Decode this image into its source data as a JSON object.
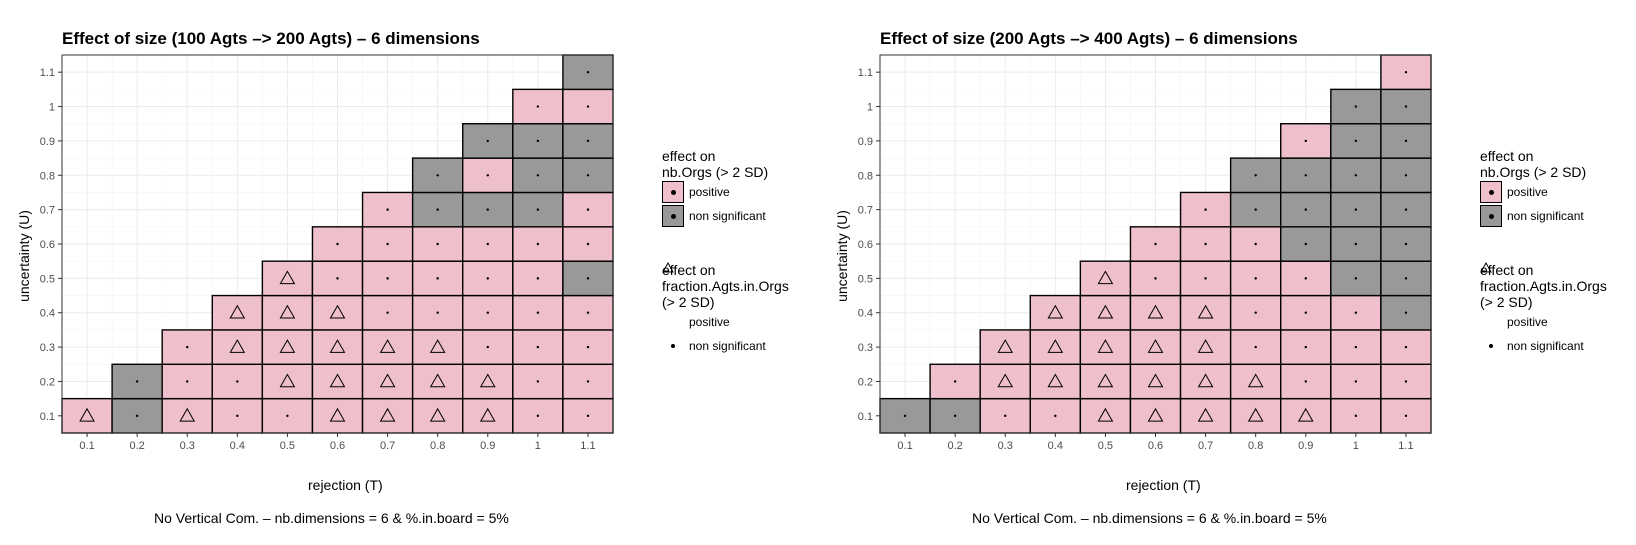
{
  "colors": {
    "positive": "#efbfcb",
    "non_significant": "#999999",
    "grid": "#ebebeb",
    "panel_border": "#333333"
  },
  "legend": {
    "fill_title_line1": "effect on",
    "fill_title_line2": "nb.Orgs (> 2 SD)",
    "fill_positive": "positive",
    "fill_ns": "non significant",
    "shape_title_line1": "effect on",
    "shape_title_line2": "fraction.Agts.in.Orgs",
    "shape_title_line3": "(> 2 SD)",
    "shape_positive": "positive",
    "shape_ns": "non significant"
  },
  "chart_data": [
    {
      "type": "heatmap",
      "title": "Effect of size (100 Agts –> 200 Agts) – 6 dimensions",
      "xlabel": "rejection (T)",
      "ylabel": "uncertainty (U)",
      "caption": "No Vertical Com. – nb.dimensions = 6 & %.in.board = 5%",
      "x_ticks": [
        "0.1",
        "0.2",
        "0.3",
        "0.4",
        "0.5",
        "0.6",
        "0.7",
        "0.8",
        "0.9",
        "1",
        "1.1"
      ],
      "y_ticks": [
        "0.1",
        "0.2",
        "0.3",
        "0.4",
        "0.5",
        "0.6",
        "0.7",
        "0.8",
        "0.9",
        "1",
        "1.1"
      ],
      "xlim": [
        0.05,
        1.15
      ],
      "ylim": [
        0.05,
        1.15
      ],
      "fill_legend": [
        "positive",
        "non significant"
      ],
      "shape_legend": [
        "positive",
        "non significant"
      ],
      "note": "rows: y=0.1..1.1; each row lists cells for x from 0.1 upward. fill: P=positive, N=non significant; shape: T=positive (triangle), D=non significant (dot)",
      "rows": [
        {
          "y": 0.1,
          "fill": [
            "P",
            "N",
            "P",
            "P",
            "P",
            "P",
            "P",
            "P",
            "P",
            "P",
            "P"
          ],
          "shape": [
            "T",
            "D",
            "T",
            "D",
            "D",
            "T",
            "T",
            "T",
            "T",
            "D",
            "D"
          ]
        },
        {
          "y": 0.2,
          "fill": [
            "N",
            "P",
            "P",
            "P",
            "P",
            "P",
            "P",
            "P",
            "P",
            "P"
          ],
          "shape": [
            "D",
            "D",
            "D",
            "T",
            "T",
            "T",
            "T",
            "T",
            "D",
            "D"
          ]
        },
        {
          "y": 0.3,
          "fill": [
            "P",
            "P",
            "P",
            "P",
            "P",
            "P",
            "P",
            "P",
            "P"
          ],
          "shape": [
            "D",
            "T",
            "T",
            "T",
            "T",
            "T",
            "D",
            "D",
            "D"
          ]
        },
        {
          "y": 0.4,
          "fill": [
            "P",
            "P",
            "P",
            "P",
            "P",
            "P",
            "P",
            "P"
          ],
          "shape": [
            "T",
            "T",
            "T",
            "D",
            "D",
            "D",
            "D",
            "D"
          ]
        },
        {
          "y": 0.5,
          "fill": [
            "P",
            "P",
            "P",
            "P",
            "P",
            "P",
            "N"
          ],
          "shape": [
            "T",
            "D",
            "D",
            "D",
            "D",
            "D",
            "D"
          ]
        },
        {
          "y": 0.6,
          "fill": [
            "P",
            "P",
            "P",
            "P",
            "P",
            "P"
          ],
          "shape": [
            "D",
            "D",
            "D",
            "D",
            "D",
            "D"
          ]
        },
        {
          "y": 0.7,
          "fill": [
            "P",
            "N",
            "N",
            "N",
            "P"
          ],
          "shape": [
            "D",
            "D",
            "D",
            "D",
            "D"
          ]
        },
        {
          "y": 0.8,
          "fill": [
            "N",
            "P",
            "N",
            "N"
          ],
          "shape": [
            "D",
            "D",
            "D",
            "D"
          ]
        },
        {
          "y": 0.9,
          "fill": [
            "N",
            "N",
            "N"
          ],
          "shape": [
            "D",
            "D",
            "D"
          ]
        },
        {
          "y": 1.0,
          "fill": [
            "P",
            "P"
          ],
          "shape": [
            "D",
            "D"
          ]
        },
        {
          "y": 1.1,
          "fill": [
            "N"
          ],
          "shape": [
            "D"
          ]
        }
      ]
    },
    {
      "type": "heatmap",
      "title": "Effect of size (200 Agts –> 400 Agts) – 6 dimensions",
      "xlabel": "rejection (T)",
      "ylabel": "uncertainty (U)",
      "caption": "No Vertical Com. – nb.dimensions = 6 & %.in.board = 5%",
      "x_ticks": [
        "0.1",
        "0.2",
        "0.3",
        "0.4",
        "0.5",
        "0.6",
        "0.7",
        "0.8",
        "0.9",
        "1",
        "1.1"
      ],
      "y_ticks": [
        "0.1",
        "0.2",
        "0.3",
        "0.4",
        "0.5",
        "0.6",
        "0.7",
        "0.8",
        "0.9",
        "1",
        "1.1"
      ],
      "xlim": [
        0.05,
        1.15
      ],
      "ylim": [
        0.05,
        1.15
      ],
      "fill_legend": [
        "positive",
        "non significant"
      ],
      "shape_legend": [
        "positive",
        "non significant"
      ],
      "note": "rows: y=0.1..1.1; each row lists cells for x from 0.1 upward. fill: P=positive, N=non significant; shape: T=positive (triangle), D=non significant (dot)",
      "rows": [
        {
          "y": 0.1,
          "fill": [
            "N",
            "N",
            "P",
            "P",
            "P",
            "P",
            "P",
            "P",
            "P",
            "P",
            "P"
          ],
          "shape": [
            "D",
            "D",
            "D",
            "D",
            "T",
            "T",
            "T",
            "T",
            "T",
            "D",
            "D"
          ]
        },
        {
          "y": 0.2,
          "fill": [
            "P",
            "P",
            "P",
            "P",
            "P",
            "P",
            "P",
            "P",
            "P",
            "P"
          ],
          "shape": [
            "D",
            "T",
            "T",
            "T",
            "T",
            "T",
            "T",
            "D",
            "D",
            "D"
          ]
        },
        {
          "y": 0.3,
          "fill": [
            "P",
            "P",
            "P",
            "P",
            "P",
            "P",
            "P",
            "P",
            "P"
          ],
          "shape": [
            "T",
            "T",
            "T",
            "T",
            "T",
            "D",
            "D",
            "D",
            "D"
          ]
        },
        {
          "y": 0.4,
          "fill": [
            "P",
            "P",
            "P",
            "P",
            "P",
            "P",
            "P",
            "N"
          ],
          "shape": [
            "T",
            "T",
            "T",
            "T",
            "D",
            "D",
            "D",
            "D"
          ]
        },
        {
          "y": 0.5,
          "fill": [
            "P",
            "P",
            "P",
            "P",
            "P",
            "N",
            "N"
          ],
          "shape": [
            "T",
            "D",
            "D",
            "D",
            "D",
            "D",
            "D"
          ]
        },
        {
          "y": 0.6,
          "fill": [
            "P",
            "P",
            "P",
            "N",
            "N",
            "N"
          ],
          "shape": [
            "D",
            "D",
            "D",
            "D",
            "D",
            "D"
          ]
        },
        {
          "y": 0.7,
          "fill": [
            "P",
            "N",
            "N",
            "N",
            "N"
          ],
          "shape": [
            "D",
            "D",
            "D",
            "D",
            "D"
          ]
        },
        {
          "y": 0.8,
          "fill": [
            "N",
            "N",
            "N",
            "N"
          ],
          "shape": [
            "D",
            "D",
            "D",
            "D"
          ]
        },
        {
          "y": 0.9,
          "fill": [
            "P",
            "N",
            "N"
          ],
          "shape": [
            "D",
            "D",
            "D"
          ]
        },
        {
          "y": 1.0,
          "fill": [
            "N",
            "N"
          ],
          "shape": [
            "D",
            "D"
          ]
        },
        {
          "y": 1.1,
          "fill": [
            "P"
          ],
          "shape": [
            "D"
          ]
        }
      ]
    }
  ]
}
